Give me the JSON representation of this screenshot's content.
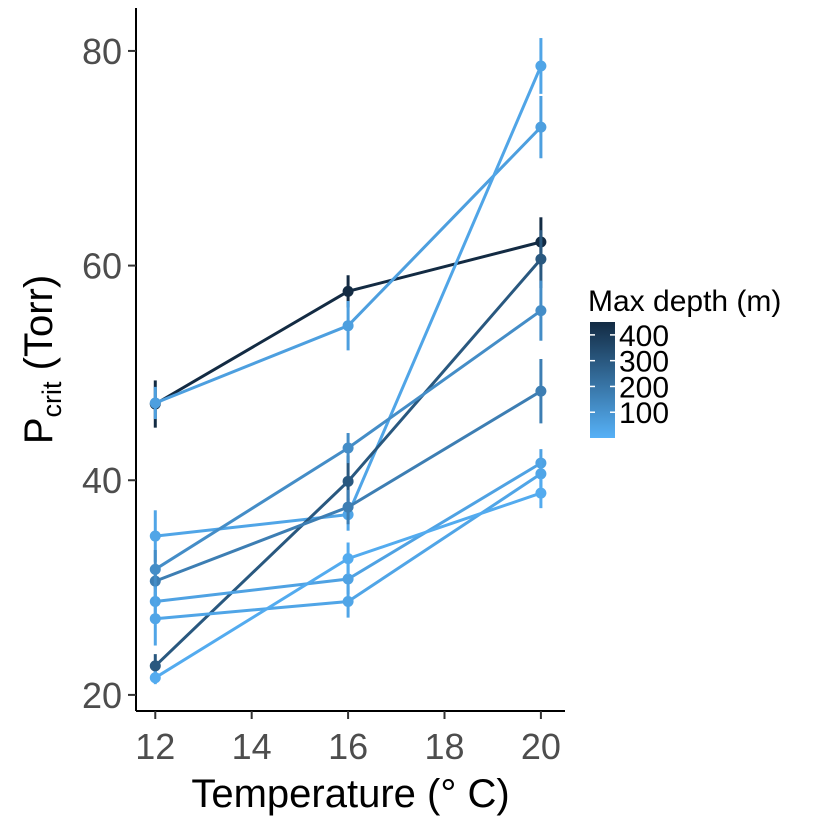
{
  "chart_data": {
    "type": "line",
    "x_axis": {
      "label": "Temperature (° C)",
      "range": [
        11.6,
        20.5
      ],
      "ticks": [
        12,
        14,
        16,
        18,
        20
      ]
    },
    "y_axis": {
      "label_main": "P",
      "label_sub": "crit",
      "label_rest": " (Torr)",
      "range": [
        18.5,
        84
      ],
      "ticks": [
        20,
        40,
        60,
        80
      ]
    },
    "legend": {
      "title": "Max depth (m)",
      "placement": "right",
      "range": [
        0,
        450
      ],
      "low_color": "#56B1F7",
      "high_color": "#132B43",
      "breaks": [
        {
          "value": 400,
          "label": "400"
        },
        {
          "value": 300,
          "label": "300"
        },
        {
          "value": 200,
          "label": "200"
        },
        {
          "value": 100,
          "label": "100"
        }
      ]
    },
    "grid": false,
    "series": [
      {
        "depth": 450,
        "points": [
          {
            "x": 12,
            "y": 47.1,
            "err": 2.2
          },
          {
            "x": 16,
            "y": 57.6,
            "err": 1.5
          },
          {
            "x": 20,
            "y": 62.2,
            "err": 2.3
          }
        ]
      },
      {
        "depth": 60,
        "points": [
          {
            "x": 12,
            "y": 47.2,
            "err": 1.5
          },
          {
            "x": 16,
            "y": 54.4,
            "err": 2.3
          },
          {
            "x": 20,
            "y": 72.9,
            "err": 2.9
          }
        ]
      },
      {
        "depth": 40,
        "points": [
          {
            "x": 12,
            "y": 34.8,
            "err": 2.4
          },
          {
            "x": 16,
            "y": 36.8,
            "err": 1.5
          },
          {
            "x": 20,
            "y": 78.6,
            "err": 2.6
          }
        ]
      },
      {
        "depth": 300,
        "points": [
          {
            "x": 12,
            "y": 22.7,
            "err": 1.1
          },
          {
            "x": 16,
            "y": 39.9,
            "err": 2.4
          },
          {
            "x": 20,
            "y": 60.6,
            "err": 2.7
          }
        ]
      },
      {
        "depth": 170,
        "points": [
          {
            "x": 12,
            "y": 30.6,
            "err": 1.4
          },
          {
            "x": 16,
            "y": 37.5,
            "err": 1.6
          },
          {
            "x": 20,
            "y": 48.3,
            "err": 3.0
          }
        ]
      },
      {
        "depth": 120,
        "points": [
          {
            "x": 12,
            "y": 31.7,
            "err": 1.8
          },
          {
            "x": 16,
            "y": 43.0,
            "err": 1.4
          },
          {
            "x": 20,
            "y": 55.8,
            "err": 2.8
          }
        ]
      },
      {
        "depth": 50,
        "points": [
          {
            "x": 12,
            "y": 28.7,
            "err": 1.4
          },
          {
            "x": 16,
            "y": 30.8,
            "err": 1.4
          },
          {
            "x": 20,
            "y": 41.6,
            "err": 1.3
          }
        ]
      },
      {
        "depth": 40,
        "points": [
          {
            "x": 12,
            "y": 27.1,
            "err": 2.5
          },
          {
            "x": 16,
            "y": 28.7,
            "err": 1.5
          },
          {
            "x": 20,
            "y": 40.6,
            "err": 1.4
          }
        ]
      },
      {
        "depth": 20,
        "points": [
          {
            "x": 12,
            "y": 21.6,
            "err": 0.6
          },
          {
            "x": 16,
            "y": 32.7,
            "err": 1.5
          },
          {
            "x": 20,
            "y": 38.8,
            "err": 1.4
          }
        ]
      }
    ]
  }
}
